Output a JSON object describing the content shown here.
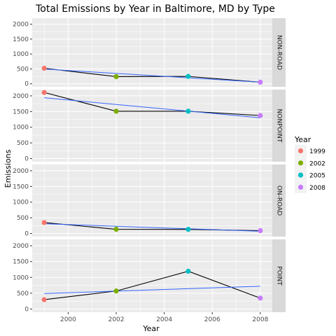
{
  "chart_data": {
    "type": "line",
    "title": "Total Emissions by Year in Baltimore, MD by Type",
    "xlabel": "Year",
    "ylabel": "Emissions",
    "xlim": [
      1998.5,
      2008.5
    ],
    "ylim": [
      -100,
      2200
    ],
    "x_ticks": [
      2000,
      2002,
      2004,
      2006,
      2008
    ],
    "y_ticks": [
      0,
      500,
      1000,
      1500,
      2000
    ],
    "legend": {
      "title": "Year",
      "position": "right",
      "items": [
        {
          "label": "1999",
          "color": "#F8766D"
        },
        {
          "label": "2002",
          "color": "#7CAE00"
        },
        {
          "label": "2005",
          "color": "#00BFC4"
        },
        {
          "label": "2008",
          "color": "#C77CFF"
        }
      ]
    },
    "line_color": "#000000",
    "trend_color": "#3366FF",
    "panels": [
      {
        "type": "NON-ROAD",
        "x": [
          1999,
          2002,
          2005,
          2008
        ],
        "y": [
          522,
          241,
          249,
          55
        ],
        "trend": [
          495,
          55
        ]
      },
      {
        "type": "NONPOINT",
        "x": [
          1999,
          2002,
          2005,
          2008
        ],
        "y": [
          2108,
          1510,
          1510,
          1374
        ],
        "trend": [
          1940,
          1300
        ]
      },
      {
        "type": "ON-ROAD",
        "x": [
          1999,
          2002,
          2005,
          2008
        ],
        "y": [
          347,
          134,
          130,
          89
        ],
        "trend": [
          310,
          70
        ]
      },
      {
        "type": "POINT",
        "x": [
          1999,
          2002,
          2005,
          2008
        ],
        "y": [
          297,
          569,
          1194,
          345
        ],
        "trend": [
          490,
          720
        ]
      }
    ]
  }
}
